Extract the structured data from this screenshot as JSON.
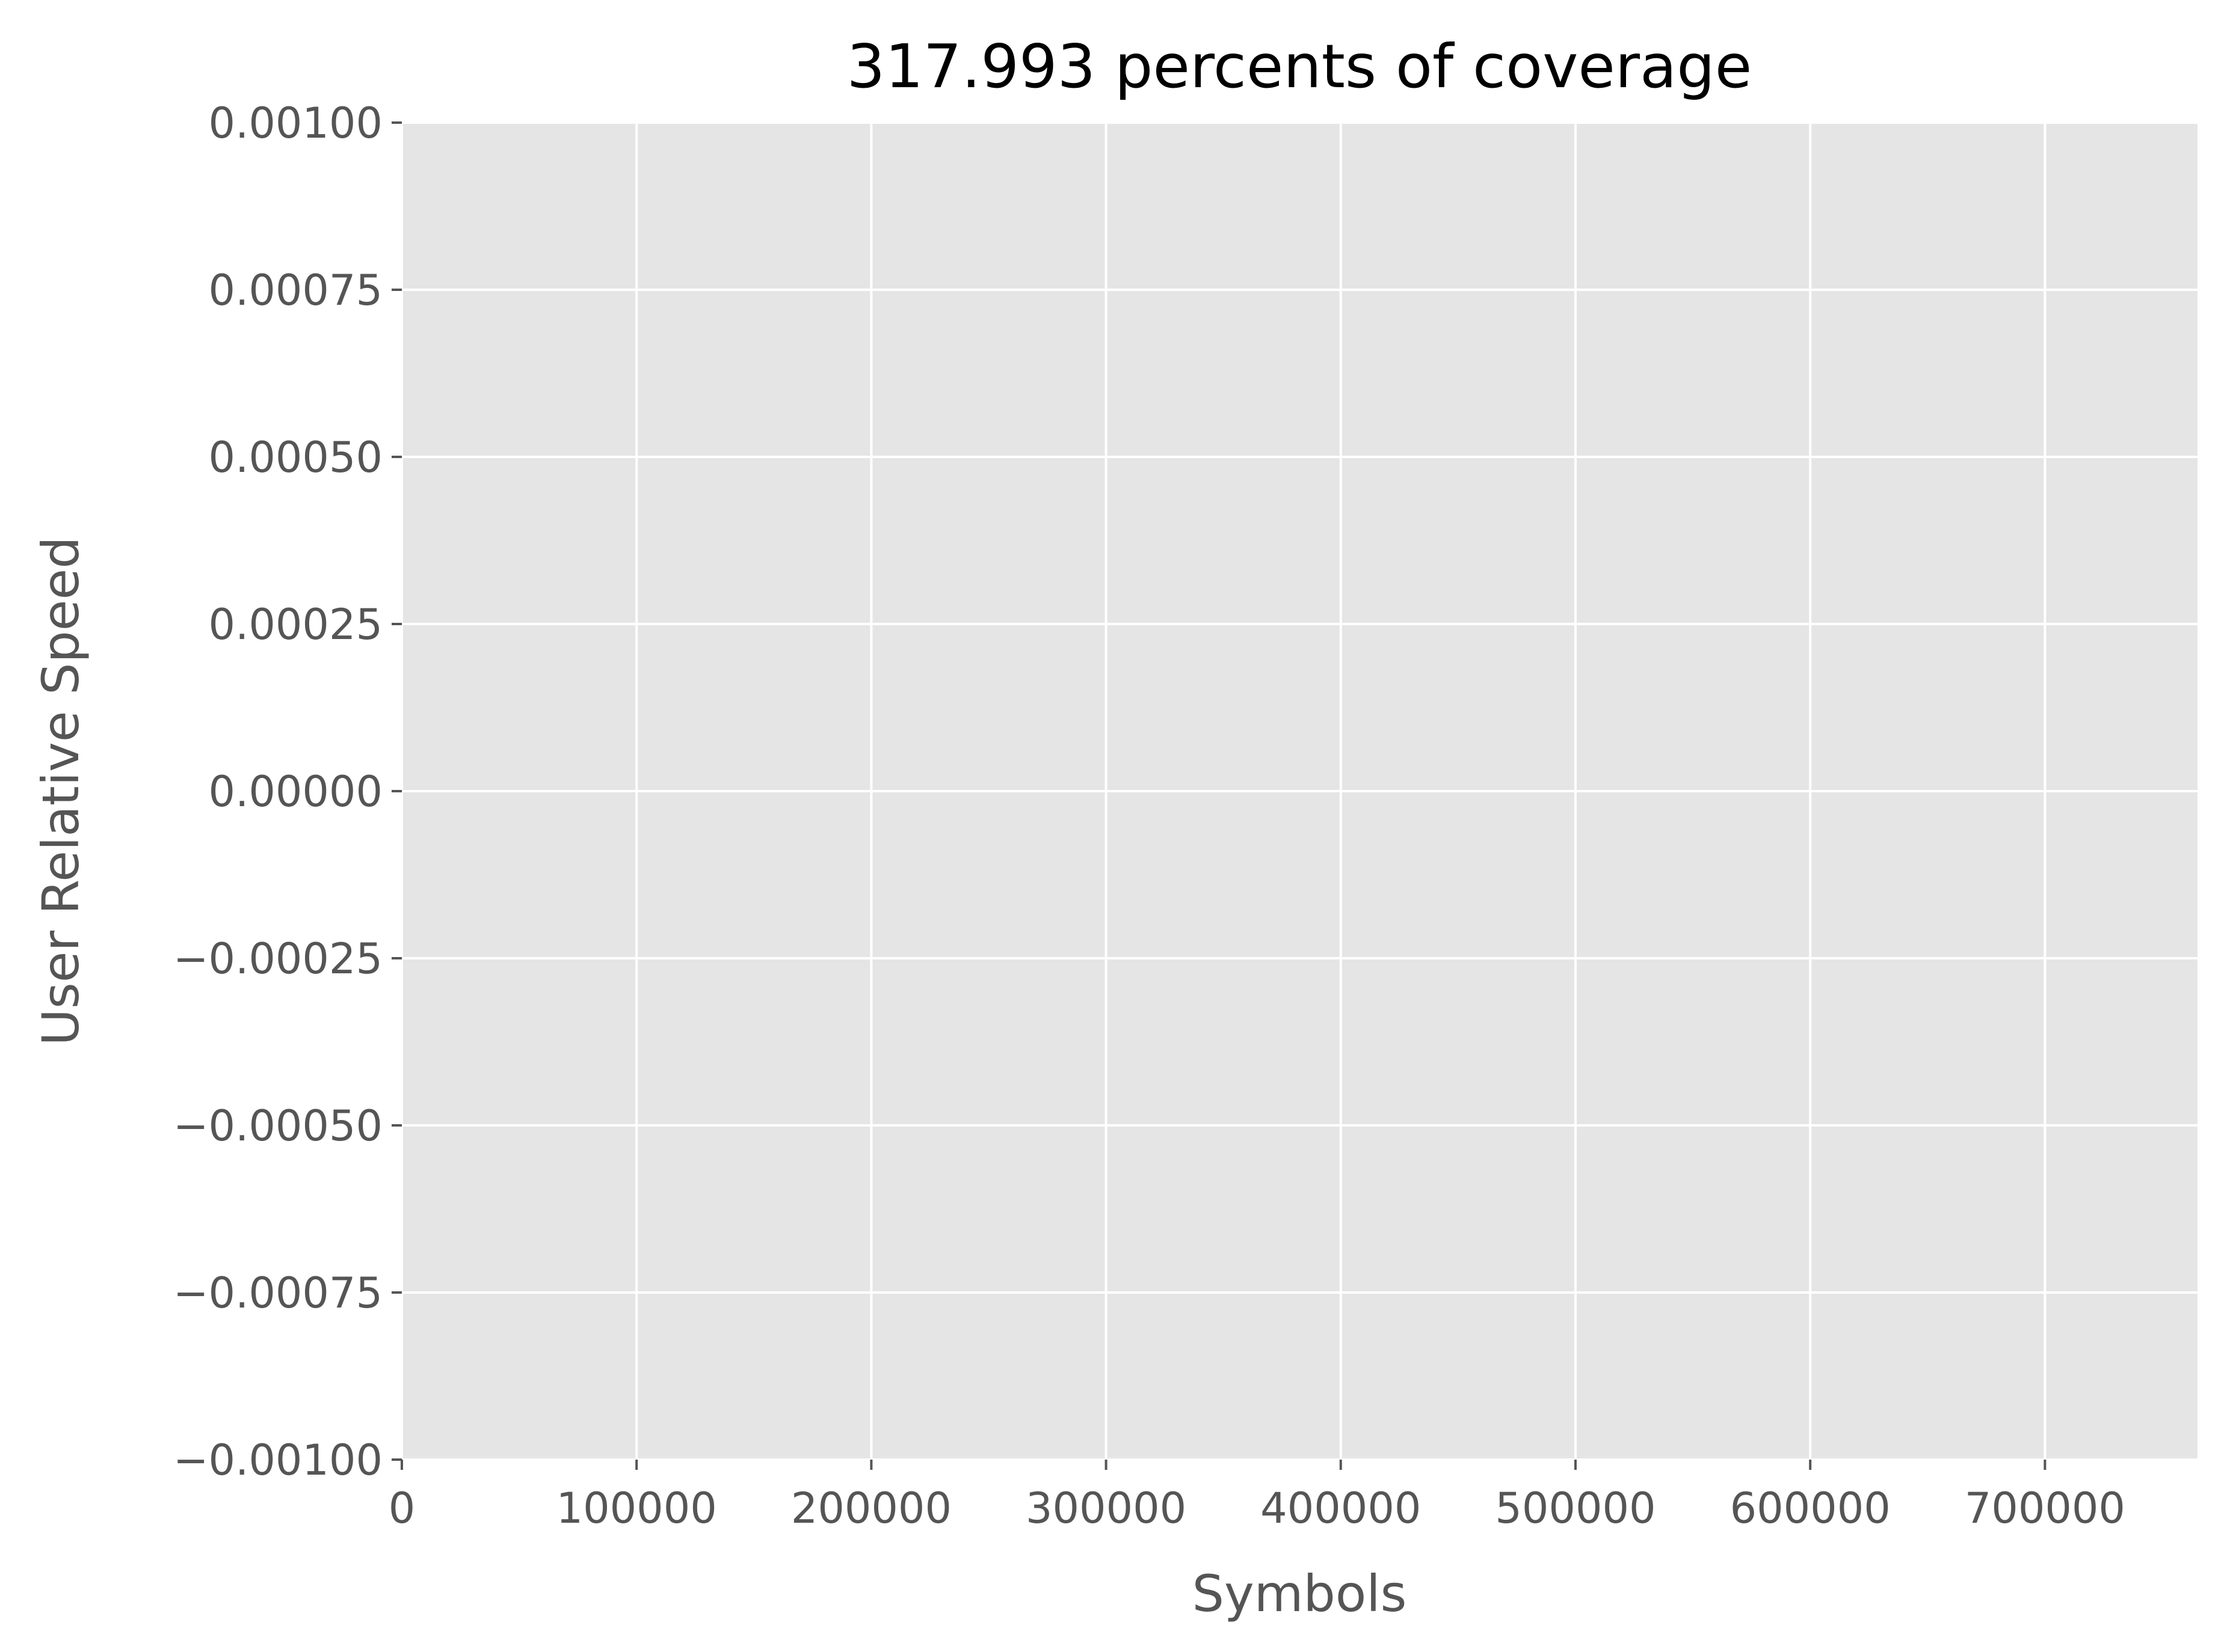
{
  "chart_data": {
    "type": "line",
    "title": "317.993 percents of coverage",
    "xlabel": "Symbols",
    "ylabel": "User Relative Speed",
    "xlim": [
      0,
      765000
    ],
    "ylim": [
      -0.001,
      0.001
    ],
    "x_ticks": [
      0,
      100000,
      200000,
      300000,
      400000,
      500000,
      600000,
      700000
    ],
    "x_tick_labels": [
      "0",
      "100000",
      "200000",
      "300000",
      "400000",
      "500000",
      "600000",
      "700000"
    ],
    "y_ticks": [
      0.001,
      0.00075,
      0.0005,
      0.00025,
      0.0,
      -0.00025,
      -0.0005,
      -0.00075,
      -0.001
    ],
    "y_tick_labels": [
      "0.00100",
      "0.00075",
      "0.00050",
      "0.00025",
      "0.00000",
      "−0.00025",
      "−0.00050",
      "−0.00075",
      "−0.00100"
    ],
    "grid": true,
    "series": [],
    "colors": {
      "plot_background": "#e5e5e5",
      "grid": "#ffffff",
      "tick": "#555555",
      "title": "#000000"
    }
  }
}
